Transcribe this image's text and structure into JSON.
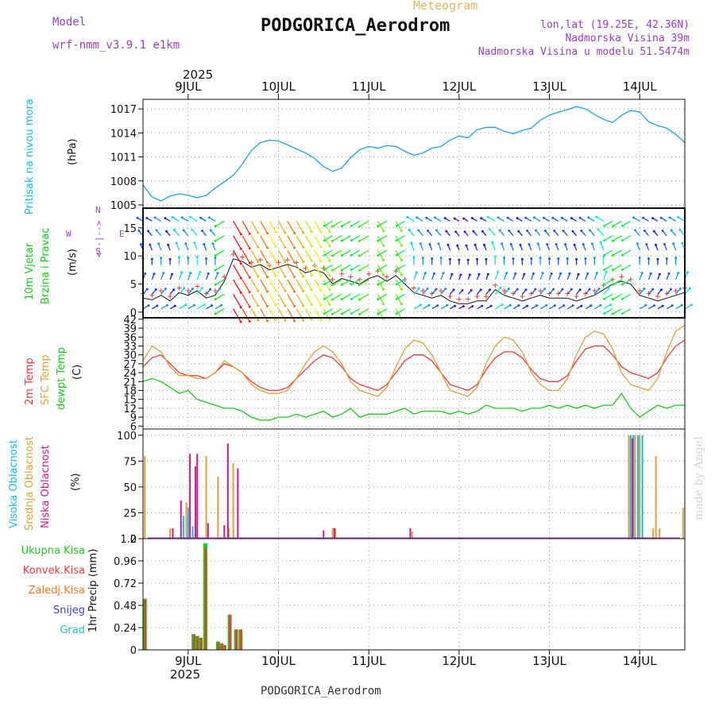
{
  "header": {
    "meteogram": "Meteogram",
    "model_label": "Model",
    "model_name": "wrf-nmm_v3.9.1 e1km",
    "station": "PODGORICA_Aerodrom",
    "lonlat": "lon,lat (19.25E, 42.36N)",
    "elevation": "Nadmorska Visina 39m",
    "model_elevation": "Nadmorska Visina u modelu 51.5474m"
  },
  "footer": {
    "station": "PODGORICA_Aerodrom"
  },
  "watermark": "made by Angel",
  "colors": {
    "pressure": "#1ea0e6",
    "temp2m": "#e63c3c",
    "sfc": "#dca03c",
    "dewpt": "#1ec81e",
    "cloud_high": "#1eb4e6",
    "cloud_mid": "#dca03c",
    "cloud_low": "#c81e8c",
    "rain_total": "#1ec81e",
    "rain_conv": "#e63c3c",
    "rain_frozen": "#f07828",
    "snow": "#3c3cdc",
    "graupel": "#1ec8b4",
    "grid": "#999999",
    "purple": "#9b3cc8"
  },
  "panels": {
    "pressure": {
      "l1": "Pritisak na nivou mora",
      "l2": "(hPa)"
    },
    "wind": {
      "l1": "10m Vjetar",
      "l2": "Brzina i Pravac",
      "l3": "(m/s)",
      "compass": {
        "n": "N",
        "s": "S",
        "w": "W",
        "e": "E",
        "r": "<--|-->",
        "c": "^",
        "d": "v"
      }
    },
    "temp": {
      "l1": "2m Temp",
      "l2": "SFC Temp",
      "l3": "dewpt Temp",
      "l4": "(C)"
    },
    "cloud": {
      "l1": "Visoka Oblacnost",
      "l2": "Srednja Oblacnost",
      "l3": "Niska Oblacnost",
      "l4": "(%)"
    },
    "precip": {
      "axis": "1hr Precip (mm)",
      "legend": [
        "Ukupna Kisa",
        "Konvek.Kisa",
        "Zaledj.Kisa",
        "Snijeg",
        "Grad"
      ]
    }
  },
  "chart_data": [
    {
      "type": "line",
      "title": "Pritisak na nivou mora",
      "ylabel": "(hPa)",
      "x_ticks": [
        "9JUL",
        "10JUL",
        "11JUL",
        "12JUL",
        "13JUL",
        "14JUL"
      ],
      "year": "2025",
      "x_unit": "day of July 2025",
      "xlim": [
        8.5,
        14.5
      ],
      "ylim": [
        1004.6,
        1018.2
      ],
      "y_ticks": [
        1005,
        1008,
        1011,
        1014,
        1017
      ],
      "grid": true,
      "series": [
        {
          "name": "Pritisak na nivou mora",
          "x": [
            8.5,
            8.6,
            8.7,
            8.8,
            8.9,
            9.0,
            9.1,
            9.2,
            9.3,
            9.4,
            9.5,
            9.6,
            9.7,
            9.8,
            9.9,
            10.0,
            10.1,
            10.2,
            10.3,
            10.4,
            10.5,
            10.6,
            10.7,
            10.8,
            10.9,
            11.0,
            11.1,
            11.2,
            11.3,
            11.4,
            11.5,
            11.6,
            11.7,
            11.8,
            11.9,
            12.0,
            12.1,
            12.2,
            12.3,
            12.4,
            12.5,
            12.6,
            12.7,
            12.8,
            12.9,
            13.0,
            13.1,
            13.2,
            13.3,
            13.4,
            13.5,
            13.6,
            13.7,
            13.8,
            13.9,
            14.0,
            14.1,
            14.2,
            14.3,
            14.4,
            14.5
          ],
          "values": [
            1007.5,
            1006.0,
            1005.5,
            1006.1,
            1006.4,
            1006.2,
            1005.9,
            1006.2,
            1007.1,
            1007.9,
            1008.7,
            1010.1,
            1011.8,
            1012.8,
            1013.1,
            1013.0,
            1012.5,
            1012.0,
            1011.5,
            1010.8,
            1009.8,
            1009.2,
            1009.6,
            1010.9,
            1011.9,
            1012.3,
            1012.1,
            1012.4,
            1012.3,
            1011.7,
            1011.2,
            1011.5,
            1012.1,
            1012.3,
            1013.1,
            1013.6,
            1013.4,
            1014.4,
            1014.7,
            1014.7,
            1014.2,
            1013.9,
            1014.3,
            1014.6,
            1015.6,
            1016.2,
            1016.6,
            1016.9,
            1017.3,
            1017.0,
            1016.3,
            1015.7,
            1015.3,
            1016.2,
            1016.8,
            1016.6,
            1015.4,
            1014.9,
            1014.6,
            1013.8,
            1012.8
          ]
        }
      ]
    },
    {
      "type": "line",
      "title": "10m Vjetar Brzina i Pravac",
      "ylabel": "(m/s)",
      "x_unit": "day of July 2025",
      "xlim": [
        8.5,
        14.5
      ],
      "ylim": [
        -1,
        18.5
      ],
      "y_ticks": [
        0,
        5,
        10,
        15
      ],
      "grid": true,
      "series": [
        {
          "name": "speed",
          "x": [
            8.5,
            8.6,
            8.7,
            8.8,
            8.9,
            9.0,
            9.1,
            9.2,
            9.3,
            9.4,
            9.5,
            9.6,
            9.7,
            9.8,
            9.9,
            10.0,
            10.1,
            10.2,
            10.3,
            10.4,
            10.5,
            10.6,
            10.7,
            10.8,
            10.9,
            11.0,
            11.1,
            11.2,
            11.3,
            11.4,
            11.5,
            11.6,
            11.7,
            11.8,
            11.9,
            12.0,
            12.1,
            12.2,
            12.3,
            12.4,
            12.5,
            12.6,
            12.7,
            12.8,
            12.9,
            13.0,
            13.1,
            13.2,
            13.3,
            13.4,
            13.5,
            13.6,
            13.7,
            13.8,
            13.9,
            14.0,
            14.1,
            14.2,
            14.3,
            14.4,
            14.5
          ],
          "values": [
            2.5,
            2.2,
            3.0,
            2.0,
            3.5,
            3.0,
            3.8,
            2.5,
            3.0,
            5.5,
            9.5,
            9.0,
            8.0,
            8.5,
            7.5,
            8.0,
            8.5,
            8.0,
            7.0,
            7.5,
            7.0,
            5.0,
            6.0,
            5.5,
            5.0,
            6.0,
            6.5,
            5.5,
            6.5,
            5.0,
            3.5,
            3.0,
            2.5,
            3.0,
            2.0,
            1.5,
            1.5,
            2.0,
            2.0,
            4.0,
            3.0,
            2.5,
            2.0,
            2.5,
            3.0,
            2.5,
            2.5,
            2.5,
            2.0,
            2.5,
            3.0,
            4.0,
            5.0,
            5.5,
            5.0,
            3.0,
            2.5,
            2.0,
            2.5,
            3.0,
            3.5
          ]
        }
      ]
    },
    {
      "type": "line",
      "title": "2m Temp / SFC Temp / dewpt Temp",
      "ylabel": "(C)",
      "x_unit": "day of July 2025",
      "xlim": [
        8.5,
        14.5
      ],
      "ylim": [
        5,
        42.5
      ],
      "y_ticks": [
        6,
        9,
        12,
        15,
        18,
        21,
        24,
        27,
        30,
        33,
        36,
        39,
        42
      ],
      "grid": true,
      "series": [
        {
          "name": "2m Temp",
          "x": [
            8.5,
            8.6,
            8.7,
            8.8,
            8.9,
            9.0,
            9.1,
            9.2,
            9.3,
            9.4,
            9.5,
            9.6,
            9.7,
            9.8,
            9.9,
            10.0,
            10.1,
            10.2,
            10.3,
            10.4,
            10.5,
            10.6,
            10.7,
            10.8,
            10.9,
            11.0,
            11.1,
            11.2,
            11.3,
            11.4,
            11.5,
            11.6,
            11.7,
            11.8,
            11.9,
            12.0,
            12.1,
            12.2,
            12.3,
            12.4,
            12.5,
            12.6,
            12.7,
            12.8,
            12.9,
            13.0,
            13.1,
            13.2,
            13.3,
            13.4,
            13.5,
            13.6,
            13.7,
            13.8,
            13.9,
            14.0,
            14.1,
            14.2,
            14.3,
            14.4,
            14.5
          ],
          "values": [
            26,
            29,
            30,
            27,
            24,
            23,
            23,
            22,
            24,
            27,
            26,
            24,
            21,
            19,
            18,
            18,
            19,
            22,
            25,
            28,
            30,
            29,
            26,
            22,
            20,
            19,
            18,
            20,
            24,
            28,
            30,
            30,
            28,
            24,
            20,
            19,
            18,
            20,
            25,
            29,
            31,
            31,
            29,
            25,
            22,
            21,
            21,
            23,
            28,
            32,
            33,
            33,
            30,
            26,
            24,
            23,
            22,
            24,
            29,
            33,
            35
          ]
        },
        {
          "name": "SFC Temp",
          "x": [
            8.5,
            8.6,
            8.7,
            8.8,
            8.9,
            9.0,
            9.1,
            9.2,
            9.3,
            9.4,
            9.5,
            9.6,
            9.7,
            9.8,
            9.9,
            10.0,
            10.1,
            10.2,
            10.3,
            10.4,
            10.5,
            10.6,
            10.7,
            10.8,
            10.9,
            11.0,
            11.1,
            11.2,
            11.3,
            11.4,
            11.5,
            11.6,
            11.7,
            11.8,
            11.9,
            12.0,
            12.1,
            12.2,
            12.3,
            12.4,
            12.5,
            12.6,
            12.7,
            12.8,
            12.9,
            13.0,
            13.1,
            13.2,
            13.3,
            13.4,
            13.5,
            13.6,
            13.7,
            13.8,
            13.9,
            14.0,
            14.1,
            14.2,
            14.3,
            14.4,
            14.5
          ],
          "values": [
            28,
            33,
            31,
            26,
            23,
            23,
            22,
            22,
            24,
            28,
            26,
            24,
            20,
            18,
            17,
            17,
            18,
            22,
            27,
            31,
            33,
            31,
            27,
            21,
            18,
            17,
            16,
            19,
            26,
            32,
            35,
            34,
            30,
            24,
            18,
            17,
            16,
            19,
            27,
            33,
            36,
            35,
            31,
            24,
            20,
            18,
            18,
            22,
            30,
            36,
            38,
            37,
            32,
            24,
            20,
            19,
            18,
            22,
            31,
            38,
            40
          ]
        },
        {
          "name": "dewpt Temp",
          "x": [
            8.5,
            8.6,
            8.7,
            8.8,
            8.9,
            9.0,
            9.1,
            9.2,
            9.3,
            9.4,
            9.5,
            9.6,
            9.7,
            9.8,
            9.9,
            10.0,
            10.1,
            10.2,
            10.3,
            10.4,
            10.5,
            10.6,
            10.7,
            10.8,
            10.9,
            11.0,
            11.1,
            11.2,
            11.3,
            11.4,
            11.5,
            11.6,
            11.7,
            11.8,
            11.9,
            12.0,
            12.1,
            12.2,
            12.3,
            12.4,
            12.5,
            12.6,
            12.7,
            12.8,
            12.9,
            13.0,
            13.1,
            13.2,
            13.3,
            13.4,
            13.5,
            13.6,
            13.7,
            13.8,
            13.9,
            14.0,
            14.1,
            14.2,
            14.3,
            14.4,
            14.5
          ],
          "values": [
            21,
            22,
            21,
            19,
            17,
            18,
            15,
            14,
            13,
            12,
            12,
            11,
            9,
            8,
            8,
            9,
            9,
            10,
            9,
            10,
            11,
            9,
            10,
            12,
            9,
            10,
            10,
            10,
            11,
            12,
            10,
            11,
            11,
            11,
            10,
            11,
            10,
            11,
            13,
            12,
            12,
            12,
            11,
            12,
            12,
            13,
            12,
            13,
            12,
            13,
            12,
            13,
            13,
            17,
            12,
            9,
            11,
            13,
            12,
            13,
            13
          ]
        }
      ]
    },
    {
      "type": "bar",
      "title": "Visoka / Srednja / Niska Oblacnost",
      "ylabel": "(%)",
      "x_unit": "day of July 2025",
      "xlim": [
        8.5,
        14.5
      ],
      "ylim": [
        0,
        106
      ],
      "y_ticks": [
        0,
        25,
        50,
        75,
        100
      ],
      "grid": true,
      "series": [
        {
          "name": "Visoka Oblacnost",
          "x": [
            8.95,
            9.0,
            9.05,
            13.9,
            13.93,
            13.95,
            13.98,
            14.0,
            14.03
          ],
          "values": [
            22,
            30,
            12,
            100,
            100,
            100,
            100,
            100,
            100
          ]
        },
        {
          "name": "Srednja Oblacnost",
          "x": [
            8.52,
            8.8,
            8.98,
            9.2,
            9.33,
            9.45,
            9.5,
            10.6,
            10.63,
            11.48,
            13.88,
            13.95,
            14.0,
            14.15,
            14.18,
            14.22,
            14.48
          ],
          "values": [
            80,
            10,
            35,
            80,
            60,
            10,
            73,
            10,
            10,
            7,
            100,
            100,
            100,
            10,
            80,
            10,
            30
          ]
        },
        {
          "name": "Niska Oblacnost",
          "x": [
            8.83,
            8.92,
            9.02,
            9.08,
            9.1,
            9.22,
            9.4,
            9.44,
            9.55,
            10.5,
            10.62,
            11.46,
            13.92
          ],
          "values": [
            10,
            37,
            82,
            70,
            82,
            15,
            13,
            92,
            68,
            8,
            10,
            10,
            97
          ]
        }
      ]
    },
    {
      "type": "bar",
      "title": "1hr Precip (mm)",
      "ylabel": "1hr Precip (mm)",
      "x_unit": "day of July 2025",
      "xlim": [
        8.5,
        14.5
      ],
      "ylim": [
        0,
        1.2
      ],
      "y_ticks": [
        0,
        0.24,
        0.48,
        0.72,
        0.96,
        1.2
      ],
      "grid": true,
      "series": [
        {
          "name": "Ukupna Kisa",
          "x": [
            8.52,
            9.06,
            9.1,
            9.14,
            9.19,
            9.33,
            9.37,
            9.4,
            9.46,
            9.53,
            9.58
          ],
          "values": [
            0.55,
            0.17,
            0.15,
            0.13,
            1.15,
            0.09,
            0.07,
            0.05,
            0.38,
            0.22,
            0.22
          ]
        },
        {
          "name": "Konvek.Kisa",
          "x": [
            8.52,
            9.06,
            9.1,
            9.14,
            9.19,
            9.33,
            9.37,
            9.4,
            9.46,
            9.53,
            9.58
          ],
          "values": [
            0.55,
            0.17,
            0.15,
            0.13,
            1.1,
            0.09,
            0.07,
            0.05,
            0.38,
            0.22,
            0.22
          ]
        },
        {
          "name": "Zaledj.Kisa",
          "x": [],
          "values": []
        },
        {
          "name": "Snijeg",
          "x": [],
          "values": []
        },
        {
          "name": "Grad",
          "x": [],
          "values": []
        }
      ]
    }
  ]
}
